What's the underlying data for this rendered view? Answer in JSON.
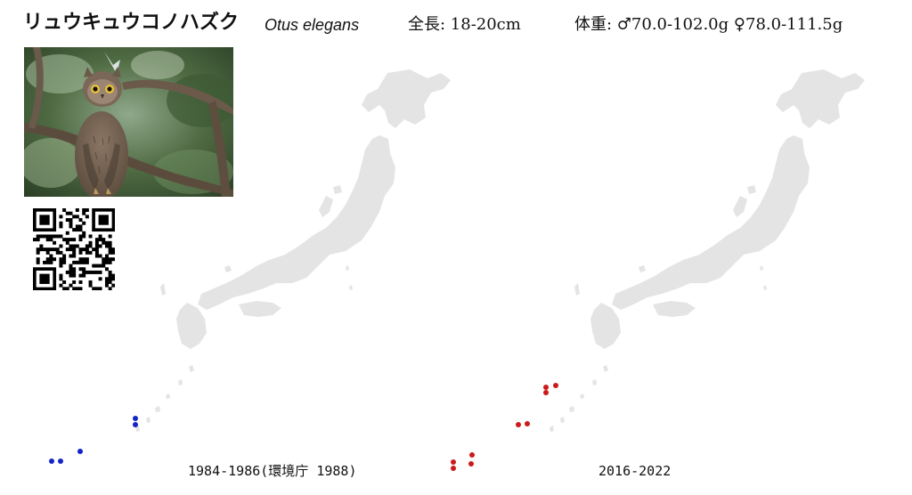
{
  "species": {
    "japanese_name": "リュウキュウコノハズク",
    "scientific_name": "Otus elegans",
    "total_length": "全長: 18-20cm",
    "body_weight": "体重: ♂70.0-102.0g ♀78.0-111.5g"
  },
  "photo": {
    "subject": "scops-owl-on-branch"
  },
  "maps": [
    {
      "period_label": "1984-1986(環境庁 1988)",
      "dot_color": "#1424c8",
      "land_color": "#e4e4e4"
    },
    {
      "period_label": "2016-2022",
      "dot_color": "#cc1a1a",
      "land_color": "#e4e4e4"
    }
  ]
}
